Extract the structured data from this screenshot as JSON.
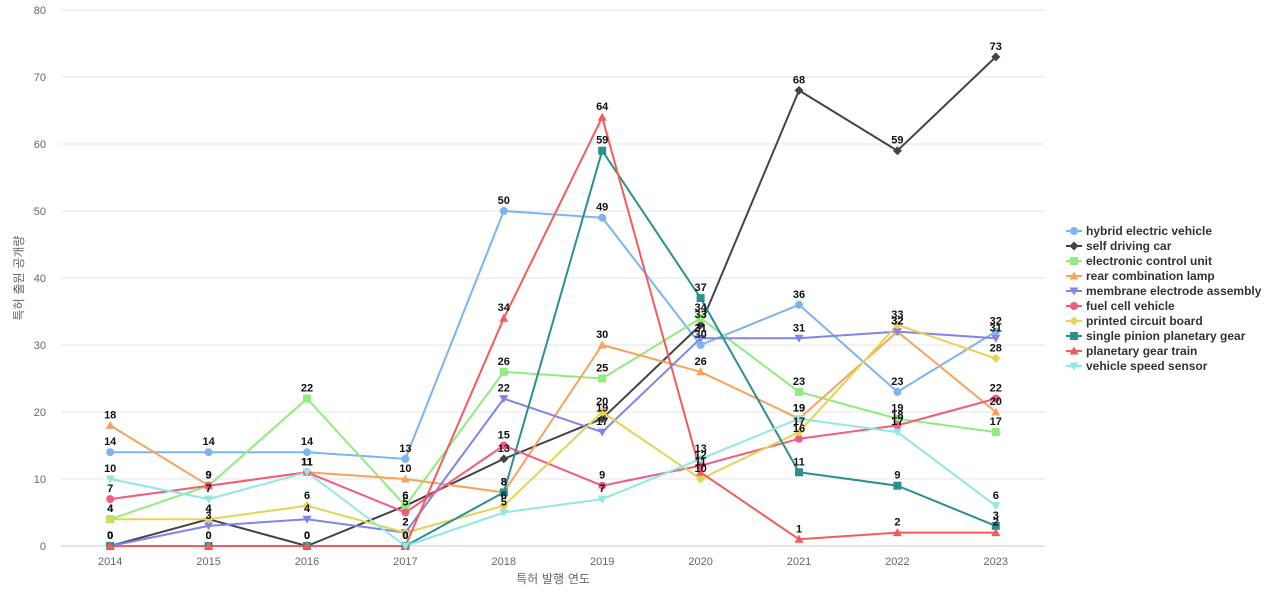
{
  "chart_data": {
    "type": "line",
    "title": "",
    "xlabel": "특허 발행 연도",
    "ylabel": "특허 출원 공개량",
    "x": [
      "2014",
      "2015",
      "2016",
      "2017",
      "2018",
      "2019",
      "2020",
      "2021",
      "2022",
      "2023"
    ],
    "ylim": [
      0,
      80
    ],
    "yticks": [
      0,
      10,
      20,
      30,
      40,
      50,
      60,
      70,
      80
    ],
    "grid": true,
    "legend_position": "right",
    "series": [
      {
        "name": "hybrid electric vehicle",
        "color": "#7cb5ec",
        "marker": "circle",
        "values": [
          14,
          14,
          14,
          13,
          50,
          49,
          30,
          36,
          23,
          32
        ]
      },
      {
        "name": "self driving car",
        "color": "#434348",
        "marker": "diamond",
        "values": [
          0,
          4,
          0,
          6,
          13,
          19,
          33,
          68,
          59,
          73
        ]
      },
      {
        "name": "electronic control unit",
        "color": "#90ed7d",
        "marker": "square",
        "values": [
          4,
          9,
          22,
          6,
          26,
          25,
          34,
          23,
          19,
          17
        ]
      },
      {
        "name": "rear combination lamp",
        "color": "#f7a35c",
        "marker": "triangle",
        "values": [
          18,
          9,
          11,
          10,
          8,
          30,
          26,
          19,
          32,
          20
        ]
      },
      {
        "name": "membrane electrode assembly",
        "color": "#8085e9",
        "marker": "triangle-down",
        "values": [
          0,
          3,
          4,
          2,
          22,
          17,
          31,
          31,
          32,
          31
        ]
      },
      {
        "name": "fuel cell vehicle",
        "color": "#f15c80",
        "marker": "circle",
        "values": [
          7,
          9,
          11,
          5,
          15,
          9,
          12,
          16,
          18,
          22
        ]
      },
      {
        "name": "printed circuit board",
        "color": "#e4d354",
        "marker": "diamond",
        "values": [
          4,
          4,
          6,
          2,
          6,
          20,
          10,
          17,
          33,
          28
        ]
      },
      {
        "name": "single pinion planetary gear",
        "color": "#2b908f",
        "marker": "square",
        "values": [
          0,
          0,
          0,
          0,
          8,
          59,
          37,
          11,
          9,
          3
        ]
      },
      {
        "name": "planetary gear train",
        "color": "#f45b5b",
        "marker": "triangle",
        "values": [
          0,
          0,
          0,
          0,
          34,
          64,
          11,
          1,
          2,
          2
        ]
      },
      {
        "name": "vehicle speed sensor",
        "color": "#91e8e1",
        "marker": "triangle-down",
        "values": [
          10,
          7,
          11,
          0,
          5,
          7,
          13,
          19,
          17,
          6
        ]
      }
    ],
    "data_labels": [
      {
        "series": 0,
        "points": [
          0,
          1,
          2,
          3,
          4,
          5,
          6,
          7,
          8,
          9
        ]
      },
      {
        "series": 1,
        "points": [
          0,
          1,
          2,
          3,
          4,
          5,
          6,
          7,
          8,
          9
        ]
      },
      {
        "series": 2,
        "points": [
          0,
          1,
          2,
          3,
          4,
          5,
          6,
          7,
          8,
          9
        ]
      },
      {
        "series": 3,
        "points": [
          0,
          1,
          2,
          3,
          4,
          5,
          6,
          7,
          8,
          9
        ]
      },
      {
        "series": 4,
        "points": [
          0,
          1,
          2,
          3,
          4,
          5,
          6,
          7,
          8,
          9
        ]
      },
      {
        "series": 5,
        "points": [
          0,
          1,
          2,
          3,
          4,
          5,
          6,
          7,
          8,
          9
        ]
      },
      {
        "series": 6,
        "points": [
          0,
          1,
          2,
          3,
          4,
          5,
          6,
          7,
          8,
          9
        ]
      },
      {
        "series": 7,
        "points": [
          0,
          1,
          2,
          3,
          4,
          5,
          6,
          7,
          8,
          9
        ]
      },
      {
        "series": 8,
        "points": [
          0,
          1,
          2,
          3,
          4,
          5,
          6,
          7,
          8,
          9
        ]
      },
      {
        "series": 9,
        "points": [
          0,
          1,
          2,
          3,
          4,
          5,
          6,
          7,
          8,
          9
        ]
      }
    ]
  }
}
